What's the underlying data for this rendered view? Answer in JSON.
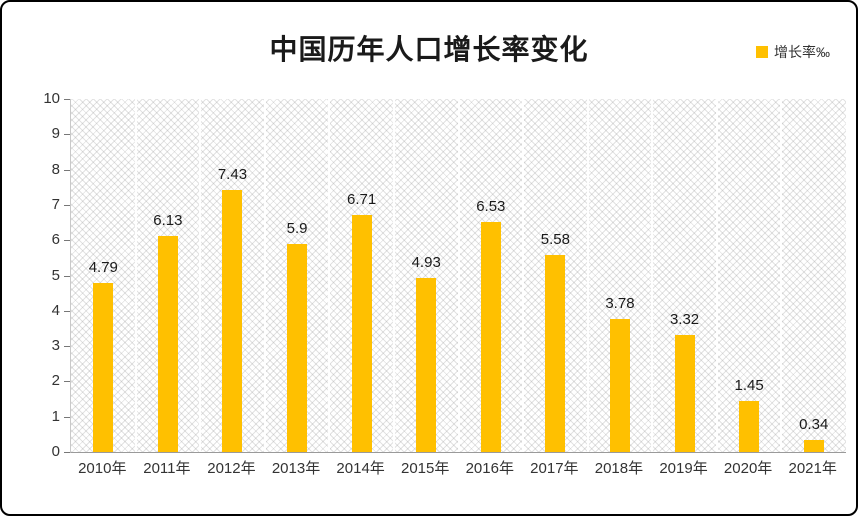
{
  "chart": {
    "colors": {
      "bar": "#FFC000",
      "title_text": "#1a1a1a"
    }
  },
  "chart_data": {
    "type": "bar",
    "title": "中国历年人口增长率变化",
    "categories": [
      "2010年",
      "2011年",
      "2012年",
      "2013年",
      "2014年",
      "2015年",
      "2016年",
      "2017年",
      "2018年",
      "2019年",
      "2020年",
      "2021年"
    ],
    "values": [
      4.79,
      6.13,
      7.43,
      5.9,
      6.71,
      4.93,
      6.53,
      5.58,
      3.78,
      3.32,
      1.45,
      0.34
    ],
    "data_labels": [
      "4.79",
      "6.13",
      "7.43",
      "5.9",
      "6.71",
      "4.93",
      "6.53",
      "5.58",
      "3.78",
      "3.32",
      "1.45",
      "0.34"
    ],
    "legend": [
      "增长率‰"
    ],
    "legend_position": "top-right",
    "xlabel": "",
    "ylabel": "",
    "ylim": [
      0,
      10
    ],
    "y_ticks": [
      0,
      1,
      2,
      3,
      4,
      5,
      6,
      7,
      8,
      9,
      10
    ],
    "grid": "vertical-white-on-hatched-background"
  }
}
